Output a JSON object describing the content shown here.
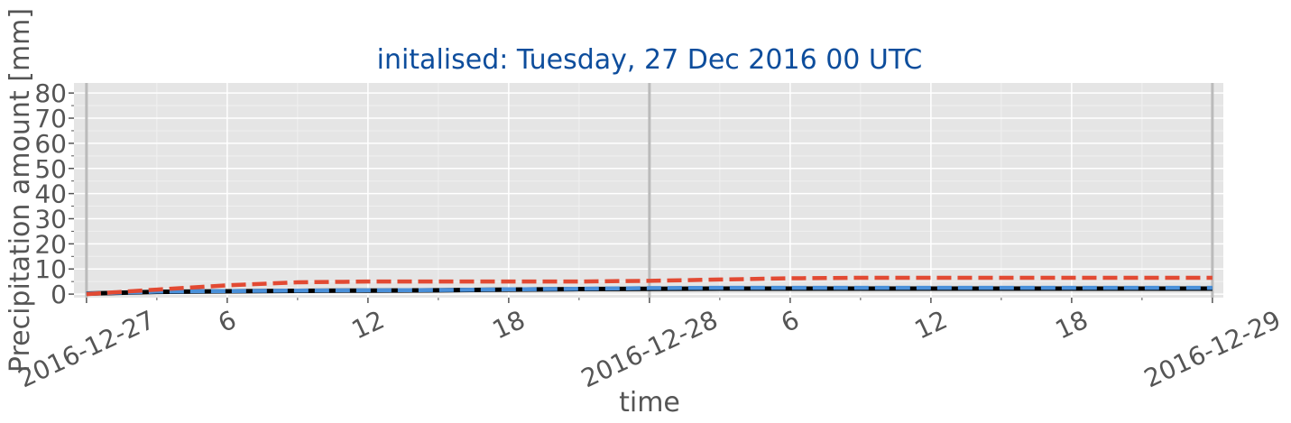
{
  "chart_data": {
    "type": "line",
    "title": "initalised: Tuesday, 27 Dec 2016 00 UTC",
    "xlabel": "time",
    "ylabel": "Precipitation amount [mm]",
    "x": [
      "2016-12-27T00:00",
      "2016-12-27T03:00",
      "2016-12-27T06:00",
      "2016-12-27T09:00",
      "2016-12-27T12:00",
      "2016-12-27T15:00",
      "2016-12-27T18:00",
      "2016-12-27T21:00",
      "2016-12-28T00:00",
      "2016-12-28T03:00",
      "2016-12-28T06:00",
      "2016-12-28T09:00",
      "2016-12-28T12:00",
      "2016-12-28T15:00",
      "2016-12-28T18:00",
      "2016-12-28T21:00",
      "2016-12-29T00:00"
    ],
    "series": [
      {
        "color": "#000000",
        "dash": "solid",
        "values": [
          0.2,
          0.9,
          1.1,
          1.3,
          1.4,
          1.5,
          1.8,
          2.0,
          2.1,
          2.2,
          2.2,
          2.2,
          2.2,
          2.2,
          2.2,
          2.2,
          2.2
        ]
      },
      {
        "color": "#4a90d9",
        "dash": "dashed",
        "values": [
          0.2,
          1.0,
          1.2,
          1.4,
          1.5,
          1.6,
          1.9,
          2.1,
          2.4,
          2.5,
          2.5,
          2.5,
          2.5,
          2.5,
          2.5,
          2.5,
          2.5
        ]
      },
      {
        "color": "#e24a33",
        "dash": "dashed",
        "values": [
          0,
          1.8,
          3.5,
          4.7,
          5,
          5,
          5,
          5,
          5.3,
          5.8,
          6.3,
          6.5,
          6.5,
          6.5,
          6.5,
          6.5,
          6.5
        ]
      }
    ],
    "xlim": [
      "2016-12-26T23:28",
      "2016-12-29T00:28"
    ],
    "xticks": [
      {
        "value": "2016-12-27T00:00",
        "label": "2016-12-27"
      },
      {
        "value": "2016-12-27T06:00",
        "label": "6"
      },
      {
        "value": "2016-12-27T12:00",
        "label": "12"
      },
      {
        "value": "2016-12-27T18:00",
        "label": "18"
      },
      {
        "value": "2016-12-28T00:00",
        "label": "2016-12-28"
      },
      {
        "value": "2016-12-28T06:00",
        "label": "6"
      },
      {
        "value": "2016-12-28T12:00",
        "label": "12"
      },
      {
        "value": "2016-12-28T18:00",
        "label": "18"
      },
      {
        "value": "2016-12-29T00:00",
        "label": "2016-12-29"
      }
    ],
    "xminor": [
      "2016-12-27T03:00",
      "2016-12-27T09:00",
      "2016-12-27T15:00",
      "2016-12-27T21:00",
      "2016-12-28T03:00",
      "2016-12-28T09:00",
      "2016-12-28T15:00",
      "2016-12-28T21:00"
    ],
    "day_lines": [
      "2016-12-27T00:00",
      "2016-12-28T00:00",
      "2016-12-29T00:00"
    ],
    "ylim": [
      -1.4,
      84
    ],
    "yticks": [
      0,
      10,
      20,
      30,
      40,
      50,
      60,
      70,
      80
    ],
    "yminor": [
      5,
      15,
      25,
      35,
      45,
      55,
      65,
      75
    ],
    "grid": true
  }
}
